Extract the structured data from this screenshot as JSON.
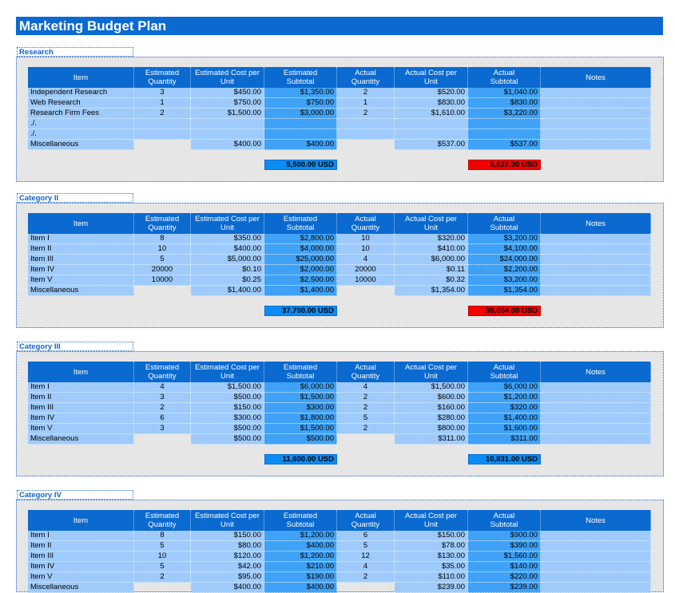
{
  "title": "Marketing Budget Plan",
  "headers": {
    "item": "Item",
    "est_qty": [
      "Estimated",
      "Quantity"
    ],
    "est_cost": [
      "Estimated Cost per",
      "Unit"
    ],
    "est_sub": [
      "Estimated",
      "Subtotal"
    ],
    "act_qty": [
      "Actual",
      "Quantity"
    ],
    "act_cost": [
      "Actual Cost per",
      "Unit"
    ],
    "act_sub": [
      "Actual",
      "Subtotal"
    ],
    "notes": "Notes"
  },
  "colors": {
    "header_blue": "#0b6ad0",
    "light_cell": "#9ecbfb",
    "subtotal_cell": "#3fa2f6",
    "total_blue": "#0b8cf4",
    "over_budget_red": "#f40000",
    "panel_gray": "#e6e6e6"
  },
  "sections": [
    {
      "label": "Research",
      "rows": [
        {
          "item": "Independent Research",
          "eq": "3",
          "ec": "$450.00",
          "es": "$1,350.00",
          "aq": "2",
          "ac": "$520.00",
          "as": "$1,040.00"
        },
        {
          "item": "Web Research",
          "eq": "1",
          "ec": "$750.00",
          "es": "$750.00",
          "aq": "1",
          "ac": "$830.00",
          "as": "$830.00"
        },
        {
          "item": "Research Firm Fees",
          "eq": "2",
          "ec": "$1,500.00",
          "es": "$3,000.00",
          "aq": "2",
          "ac": "$1,610.00",
          "as": "$3,220.00"
        },
        {
          "item": "./.",
          "eq": "",
          "ec": "",
          "es": "",
          "aq": "",
          "ac": "",
          "as": ""
        },
        {
          "item": "./.",
          "eq": "",
          "ec": "",
          "es": "",
          "aq": "",
          "ac": "",
          "as": ""
        },
        {
          "item": "Miscellaneous",
          "eq": "",
          "ec": "$400.00",
          "es": "$400.00",
          "aq": "",
          "ac": "$537.00",
          "as": "$537.00",
          "misc": true
        }
      ],
      "est_total": "5,500.00 USD",
      "act_total": "5,627.00 USD",
      "act_total_over": true
    },
    {
      "label": "Category II",
      "rows": [
        {
          "item": "Item I",
          "eq": "8",
          "ec": "$350.00",
          "es": "$2,800.00",
          "aq": "10",
          "ac": "$320.00",
          "as": "$3,200.00"
        },
        {
          "item": "Item II",
          "eq": "10",
          "ec": "$400.00",
          "es": "$4,000.00",
          "aq": "10",
          "ac": "$410.00",
          "as": "$4,100.00"
        },
        {
          "item": "Item III",
          "eq": "5",
          "ec": "$5,000.00",
          "es": "$25,000.00",
          "aq": "4",
          "ac": "$6,000.00",
          "as": "$24,000.00"
        },
        {
          "item": "Item IV",
          "eq": "20000",
          "ec": "$0.10",
          "es": "$2,000.00",
          "aq": "20000",
          "ac": "$0.11",
          "as": "$2,200.00"
        },
        {
          "item": "Item V",
          "eq": "10000",
          "ec": "$0.25",
          "es": "$2,500.00",
          "aq": "10000",
          "ac": "$0.32",
          "as": "$3,200.00"
        },
        {
          "item": "Miscellaneous",
          "eq": "",
          "ec": "$1,400.00",
          "es": "$1,400.00",
          "aq": "",
          "ac": "$1,354.00",
          "as": "$1,354.00",
          "misc": true
        }
      ],
      "est_total": "37,700.00 USD",
      "act_total": "38,054.00 USD",
      "act_total_over": true
    },
    {
      "label": "Category III",
      "rows": [
        {
          "item": "Item I",
          "eq": "4",
          "ec": "$1,500.00",
          "es": "$6,000.00",
          "aq": "4",
          "ac": "$1,500.00",
          "as": "$6,000.00"
        },
        {
          "item": "Item II",
          "eq": "3",
          "ec": "$500.00",
          "es": "$1,500.00",
          "aq": "2",
          "ac": "$600.00",
          "as": "$1,200.00"
        },
        {
          "item": "Item III",
          "eq": "2",
          "ec": "$150.00",
          "es": "$300.00",
          "aq": "2",
          "ac": "$160.00",
          "as": "$320.00"
        },
        {
          "item": "Item IV",
          "eq": "6",
          "ec": "$300.00",
          "es": "$1,800.00",
          "aq": "5",
          "ac": "$280.00",
          "as": "$1,400.00"
        },
        {
          "item": "Item V",
          "eq": "3",
          "ec": "$500.00",
          "es": "$1,500.00",
          "aq": "2",
          "ac": "$800.00",
          "as": "$1,600.00"
        },
        {
          "item": "Miscellaneous",
          "eq": "",
          "ec": "$500.00",
          "es": "$500.00",
          "aq": "",
          "ac": "$311.00",
          "as": "$311.00",
          "misc": true
        }
      ],
      "est_total": "11,600.00 USD",
      "act_total": "10,831.00 USD",
      "act_total_over": false
    },
    {
      "label": "Category IV",
      "rows": [
        {
          "item": "Item I",
          "eq": "8",
          "ec": "$150.00",
          "es": "$1,200.00",
          "aq": "6",
          "ac": "$150.00",
          "as": "$900.00"
        },
        {
          "item": "Item II",
          "eq": "5",
          "ec": "$80.00",
          "es": "$400.00",
          "aq": "5",
          "ac": "$78.00",
          "as": "$390.00"
        },
        {
          "item": "Item III",
          "eq": "10",
          "ec": "$120.00",
          "es": "$1,200.00",
          "aq": "12",
          "ac": "$130.00",
          "as": "$1,560.00"
        },
        {
          "item": "Item IV",
          "eq": "5",
          "ec": "$42.00",
          "es": "$210.00",
          "aq": "4",
          "ac": "$35.00",
          "as": "$140.00"
        },
        {
          "item": "Item V",
          "eq": "2",
          "ec": "$95.00",
          "es": "$190.00",
          "aq": "2",
          "ac": "$110.00",
          "as": "$220.00"
        },
        {
          "item": "Miscellaneous",
          "eq": "",
          "ec": "$400.00",
          "es": "$400.00",
          "aq": "",
          "ac": "$239.00",
          "as": "$239.00",
          "misc": true
        }
      ],
      "est_total": "",
      "act_total": "",
      "act_total_over": false
    }
  ]
}
